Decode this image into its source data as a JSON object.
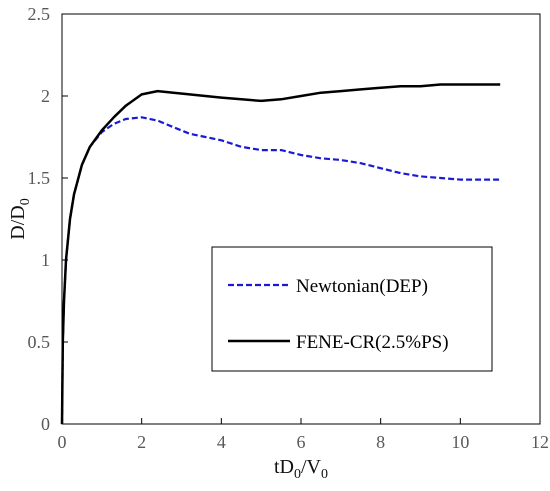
{
  "chart_data": {
    "type": "line",
    "xlabel": {
      "main": "tD",
      "sub1": "0",
      "slash": "/V",
      "sub2": "0"
    },
    "ylabel": {
      "main": "D/D",
      "sub": "0"
    },
    "xlim": [
      0,
      12
    ],
    "ylim": [
      0,
      2.5
    ],
    "xticks": [
      0,
      2,
      4,
      6,
      8,
      10,
      12
    ],
    "yticks": [
      0,
      0.5,
      1,
      1.5,
      2,
      2.5
    ],
    "xtick_labels": [
      "0",
      "2",
      "4",
      "6",
      "8",
      "10",
      "12"
    ],
    "ytick_labels": [
      "0",
      "0.5",
      "1",
      "1.5",
      "2",
      "2.5"
    ],
    "grid": false,
    "legend_position": "bottom-right",
    "series": [
      {
        "name": "Newtonian(DEP)",
        "color": "#1a1ad6",
        "style": "dashed",
        "x": [
          0,
          0.02,
          0.05,
          0.1,
          0.2,
          0.3,
          0.5,
          0.7,
          1.0,
          1.3,
          1.6,
          2.0,
          2.4,
          2.8,
          3.2,
          3.6,
          4.0,
          4.5,
          5.0,
          5.5,
          6.0,
          6.5,
          7.0,
          7.5,
          8.0,
          8.5,
          9.0,
          9.5,
          10.0,
          10.5,
          11.0
        ],
        "values": [
          0,
          0.5,
          0.75,
          1.0,
          1.25,
          1.4,
          1.58,
          1.69,
          1.78,
          1.83,
          1.86,
          1.87,
          1.85,
          1.81,
          1.77,
          1.75,
          1.73,
          1.69,
          1.67,
          1.67,
          1.64,
          1.62,
          1.61,
          1.59,
          1.56,
          1.53,
          1.51,
          1.5,
          1.49,
          1.49,
          1.49
        ]
      },
      {
        "name": "FENE-CR(2.5%PS)",
        "color": "#000000",
        "style": "solid",
        "x": [
          0,
          0.02,
          0.05,
          0.1,
          0.2,
          0.3,
          0.5,
          0.7,
          1.0,
          1.3,
          1.6,
          2.0,
          2.4,
          2.8,
          3.2,
          3.6,
          4.0,
          4.5,
          5.0,
          5.5,
          6.0,
          6.5,
          7.0,
          7.5,
          8.0,
          8.5,
          9.0,
          9.5,
          10.0,
          10.5,
          11.0
        ],
        "values": [
          0,
          0.5,
          0.75,
          1.0,
          1.25,
          1.4,
          1.58,
          1.69,
          1.79,
          1.87,
          1.94,
          2.01,
          2.03,
          2.02,
          2.01,
          2.0,
          1.99,
          1.98,
          1.97,
          1.98,
          2.0,
          2.02,
          2.03,
          2.04,
          2.05,
          2.06,
          2.06,
          2.07,
          2.07,
          2.07,
          2.07
        ]
      }
    ]
  }
}
